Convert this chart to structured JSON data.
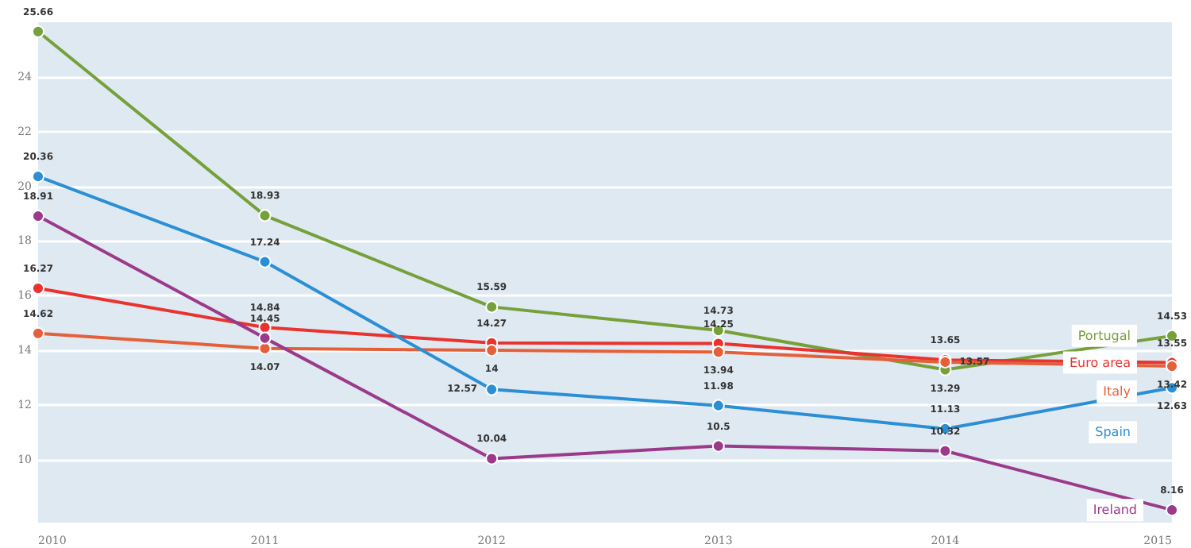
{
  "chart_data": {
    "type": "line",
    "categories": [
      "2010",
      "2011",
      "2012",
      "2013",
      "2014",
      "2015"
    ],
    "series": [
      {
        "name": "Portugal",
        "color": "#76a03a",
        "values": [
          25.66,
          18.93,
          15.59,
          14.73,
          13.29,
          14.53
        ]
      },
      {
        "name": "Euro area",
        "color": "#e8332f",
        "values": [
          16.27,
          14.84,
          14.27,
          14.25,
          13.65,
          13.55
        ]
      },
      {
        "name": "Italy",
        "color": "#e4603a",
        "values": [
          14.62,
          14.07,
          14.0,
          13.94,
          13.57,
          13.42
        ]
      },
      {
        "name": "Spain",
        "color": "#2b8fd6",
        "values": [
          20.36,
          17.24,
          12.57,
          11.98,
          11.13,
          12.63
        ]
      },
      {
        "name": "Ireland",
        "color": "#9b3a8a",
        "values": [
          18.91,
          14.45,
          10.04,
          10.5,
          10.32,
          8.16
        ]
      }
    ],
    "ylim": [
      7.7,
      26
    ],
    "yticks": [
      10,
      12,
      14,
      16,
      18,
      20,
      22,
      24
    ],
    "grid": "y",
    "legend": false,
    "marker": "circle",
    "line_style": "solid",
    "data_labels": true
  }
}
